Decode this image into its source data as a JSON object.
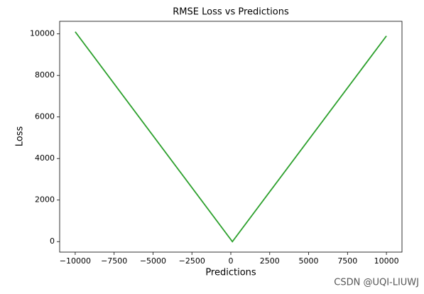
{
  "chart_data": {
    "type": "line",
    "title": "RMSE Loss vs Predictions",
    "x_label": "Predictions",
    "y_label": "Loss",
    "x": [
      -10000,
      100,
      10000
    ],
    "values": [
      10100,
      0,
      9900
    ],
    "color": "#2ca02c",
    "xlim": [
      -11000,
      11000
    ],
    "ylim": [
      -505,
      10605
    ],
    "xticks": [
      {
        "value": -10000,
        "label": "−10000"
      },
      {
        "value": -7500,
        "label": "−7500"
      },
      {
        "value": -5000,
        "label": "−5000"
      },
      {
        "value": -2500,
        "label": "−2500"
      },
      0,
      2500,
      5000,
      7500,
      10000
    ],
    "yticks": [
      0,
      2000,
      4000,
      6000,
      8000,
      10000
    ],
    "watermark": "CSDN @UQI-LIUWJ"
  }
}
